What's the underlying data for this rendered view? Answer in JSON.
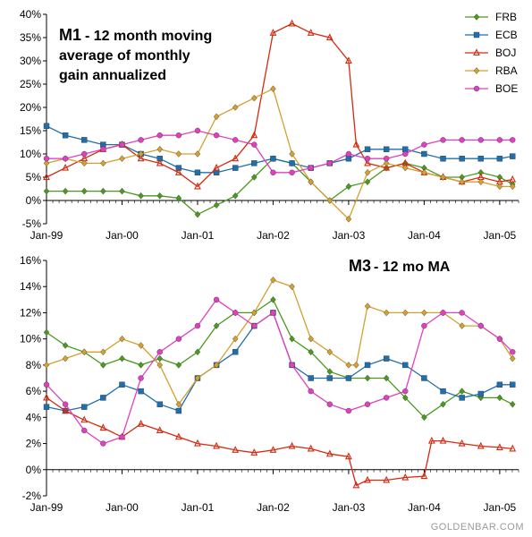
{
  "series_styles": [
    {
      "key": "FRB",
      "color": "#4a9a1e",
      "marker": "diamond"
    },
    {
      "key": "ECB",
      "color": "#1e6fb0",
      "marker": "square"
    },
    {
      "key": "BOJ",
      "color": "#d42a10",
      "marker": "triangle"
    },
    {
      "key": "RBA",
      "color": "#d4a030",
      "marker": "diamond"
    },
    {
      "key": "BOE",
      "color": "#e040c0",
      "marker": "circle"
    }
  ],
  "legend": {
    "position": "top-right",
    "entries": [
      "FRB",
      "ECB",
      "BOJ",
      "RBA",
      "BOE"
    ]
  },
  "watermark": "GOLDENBAR.COM",
  "chart_data": [
    {
      "type": "line",
      "title": "M1",
      "subtitle_lines": [
        "- 12 month moving",
        "average of monthly",
        "gain annualized"
      ],
      "ylim": [
        -5,
        40
      ],
      "yticks": [
        -5,
        0,
        5,
        10,
        15,
        20,
        25,
        30,
        35,
        40
      ],
      "ytick_labels": [
        "-5%",
        "0%",
        "5%",
        "10%",
        "15%",
        "20%",
        "25%",
        "30%",
        "35%",
        "40%"
      ],
      "xlim": [
        1999.0,
        2005.25
      ],
      "xticks": [
        1999,
        2000,
        2001,
        2002,
        2003,
        2004,
        2005
      ],
      "xtick_labels": [
        "Jan-99",
        "Jan-00",
        "Jan-01",
        "Jan-02",
        "Jan-03",
        "Jan-04",
        "Jan-05"
      ],
      "grid": false,
      "series": [
        {
          "name": "FRB",
          "x": [
            1999.0,
            1999.25,
            1999.5,
            1999.75,
            2000.0,
            2000.25,
            2000.5,
            2000.75,
            2001.0,
            2001.25,
            2001.5,
            2001.75,
            2002.0,
            2002.25,
            2002.5,
            2002.75,
            2003.0,
            2003.25,
            2003.5,
            2003.75,
            2004.0,
            2004.25,
            2004.5,
            2004.75,
            2005.0,
            2005.17
          ],
          "y": [
            2,
            2,
            2,
            2,
            2,
            1,
            1,
            0.5,
            -3,
            -1,
            1,
            5,
            9,
            8,
            4,
            0,
            3,
            4,
            7,
            8,
            7,
            5,
            5,
            6,
            5,
            3.5
          ]
        },
        {
          "name": "ECB",
          "x": [
            1999.0,
            1999.25,
            1999.5,
            1999.75,
            2000.0,
            2000.25,
            2000.5,
            2000.75,
            2001.0,
            2001.25,
            2001.5,
            2001.75,
            2002.0,
            2002.25,
            2002.5,
            2002.75,
            2003.0,
            2003.25,
            2003.5,
            2003.75,
            2004.0,
            2004.25,
            2004.5,
            2004.75,
            2005.0,
            2005.17
          ],
          "y": [
            16,
            14,
            13,
            12,
            12,
            10,
            9,
            7,
            6,
            6,
            7,
            8,
            9,
            8,
            7,
            8,
            9,
            11,
            11,
            11,
            10,
            9,
            9,
            9,
            9,
            9.5
          ]
        },
        {
          "name": "BOJ",
          "x": [
            1999.0,
            1999.25,
            1999.5,
            1999.75,
            2000.0,
            2000.25,
            2000.5,
            2000.75,
            2001.0,
            2001.25,
            2001.5,
            2001.75,
            2002.0,
            2002.25,
            2002.5,
            2002.75,
            2003.0,
            2003.1,
            2003.25,
            2003.5,
            2003.75,
            2004.0,
            2004.25,
            2004.5,
            2004.75,
            2005.0,
            2005.17
          ],
          "y": [
            5,
            7,
            9,
            11,
            12,
            9,
            8,
            6,
            3,
            7,
            9,
            14,
            36,
            38,
            36,
            35,
            30,
            12,
            8,
            7,
            8,
            6,
            5,
            4,
            5,
            4,
            4.5
          ]
        },
        {
          "name": "RBA",
          "x": [
            1999.0,
            1999.25,
            1999.5,
            1999.75,
            2000.0,
            2000.25,
            2000.5,
            2000.75,
            2001.0,
            2001.25,
            2001.5,
            2001.75,
            2002.0,
            2002.25,
            2002.5,
            2002.75,
            2003.0,
            2003.25,
            2003.5,
            2003.75,
            2004.0,
            2004.25,
            2004.5,
            2004.75,
            2005.0,
            2005.17
          ],
          "y": [
            8,
            9,
            8,
            8,
            9,
            10,
            11,
            10,
            10,
            18,
            20,
            22,
            24,
            10,
            4,
            0,
            -4,
            6,
            8,
            7,
            6,
            5,
            4,
            4,
            3,
            3
          ]
        },
        {
          "name": "BOE",
          "x": [
            1999.0,
            1999.25,
            1999.5,
            1999.75,
            2000.0,
            2000.25,
            2000.5,
            2000.75,
            2001.0,
            2001.25,
            2001.5,
            2001.75,
            2002.0,
            2002.25,
            2002.5,
            2002.75,
            2003.0,
            2003.25,
            2003.5,
            2003.75,
            2004.0,
            2004.25,
            2004.5,
            2004.75,
            2005.0,
            2005.17
          ],
          "y": [
            9,
            9,
            10,
            11,
            12,
            13,
            14,
            14,
            15,
            14,
            13,
            12,
            6,
            6,
            7,
            8,
            10,
            9,
            9,
            10,
            12,
            13,
            13,
            13,
            13,
            13
          ]
        }
      ]
    },
    {
      "type": "line",
      "title": "M3",
      "subtitle_lines": [
        "- 12 mo MA"
      ],
      "ylim": [
        -2,
        16
      ],
      "yticks": [
        -2,
        0,
        2,
        4,
        6,
        8,
        10,
        12,
        14,
        16
      ],
      "ytick_labels": [
        "-2%",
        "0%",
        "2%",
        "4%",
        "6%",
        "8%",
        "10%",
        "12%",
        "14%",
        "16%"
      ],
      "xlim": [
        1999.0,
        2005.25
      ],
      "xticks": [
        1999,
        2000,
        2001,
        2002,
        2003,
        2004,
        2005
      ],
      "xtick_labels": [
        "Jan-99",
        "Jan-00",
        "Jan-01",
        "Jan-02",
        "Jan-03",
        "Jan-04",
        "Jan-05"
      ],
      "grid": false,
      "series": [
        {
          "name": "FRB",
          "x": [
            1999.0,
            1999.25,
            1999.5,
            1999.75,
            2000.0,
            2000.25,
            2000.5,
            2000.75,
            2001.0,
            2001.25,
            2001.5,
            2001.75,
            2002.0,
            2002.25,
            2002.5,
            2002.75,
            2003.0,
            2003.25,
            2003.5,
            2003.75,
            2004.0,
            2004.25,
            2004.5,
            2004.75,
            2005.0,
            2005.17
          ],
          "y": [
            10.5,
            9.5,
            9,
            8,
            8.5,
            8,
            8.5,
            8,
            9,
            11,
            12,
            12,
            13,
            10,
            9,
            7.5,
            7,
            7,
            7,
            5.5,
            4,
            5,
            6,
            5.5,
            5.5,
            5
          ]
        },
        {
          "name": "ECB",
          "x": [
            1999.0,
            1999.25,
            1999.5,
            1999.75,
            2000.0,
            2000.25,
            2000.5,
            2000.75,
            2001.0,
            2001.25,
            2001.5,
            2001.75,
            2002.0,
            2002.25,
            2002.5,
            2002.75,
            2003.0,
            2003.25,
            2003.5,
            2003.75,
            2004.0,
            2004.25,
            2004.5,
            2004.75,
            2005.0,
            2005.17
          ],
          "y": [
            4.8,
            4.5,
            4.8,
            5.5,
            6.5,
            6,
            5,
            4.5,
            7,
            8,
            9,
            11,
            12,
            8,
            7,
            7,
            7,
            8,
            8.5,
            8,
            7,
            6,
            5.5,
            5.8,
            6.5,
            6.5
          ]
        },
        {
          "name": "BOJ",
          "x": [
            1999.0,
            1999.25,
            1999.5,
            1999.75,
            2000.0,
            2000.25,
            2000.5,
            2000.75,
            2001.0,
            2001.25,
            2001.5,
            2001.75,
            2002.0,
            2002.25,
            2002.5,
            2002.75,
            2003.0,
            2003.1,
            2003.25,
            2003.5,
            2003.75,
            2004.0,
            2004.1,
            2004.25,
            2004.5,
            2004.75,
            2005.0,
            2005.17
          ],
          "y": [
            5.5,
            4.5,
            3.8,
            3.2,
            2.5,
            3.5,
            3,
            2.5,
            2,
            1.8,
            1.5,
            1.3,
            1.5,
            1.8,
            1.6,
            1.2,
            1.0,
            -1.2,
            -0.8,
            -0.8,
            -0.6,
            -0.5,
            2.2,
            2.2,
            2.0,
            1.8,
            1.7,
            1.6
          ]
        },
        {
          "name": "RBA",
          "x": [
            1999.0,
            1999.25,
            1999.5,
            1999.75,
            2000.0,
            2000.25,
            2000.5,
            2000.75,
            2001.0,
            2001.25,
            2001.5,
            2001.75,
            2002.0,
            2002.25,
            2002.5,
            2002.75,
            2003.0,
            2003.1,
            2003.25,
            2003.5,
            2003.75,
            2004.0,
            2004.25,
            2004.5,
            2004.75,
            2005.0,
            2005.17
          ],
          "y": [
            8,
            8.5,
            9,
            9,
            10,
            9.5,
            8,
            5,
            7,
            8,
            10,
            12,
            14.5,
            14,
            10,
            9,
            8,
            8,
            12.5,
            12,
            12,
            12,
            12,
            11,
            11,
            10,
            8.5
          ]
        },
        {
          "name": "BOE",
          "x": [
            1999.0,
            1999.25,
            1999.5,
            1999.75,
            2000.0,
            2000.25,
            2000.5,
            2000.75,
            2001.0,
            2001.25,
            2001.5,
            2001.75,
            2002.0,
            2002.25,
            2002.5,
            2002.75,
            2003.0,
            2003.25,
            2003.5,
            2003.75,
            2004.0,
            2004.25,
            2004.5,
            2004.75,
            2005.0,
            2005.17
          ],
          "y": [
            6.5,
            5,
            3,
            2,
            2.5,
            7,
            9,
            10,
            11,
            13,
            12,
            11,
            12,
            8,
            6,
            5,
            4.5,
            5,
            5.5,
            6,
            11,
            12,
            12,
            11,
            10,
            9
          ]
        }
      ]
    }
  ]
}
